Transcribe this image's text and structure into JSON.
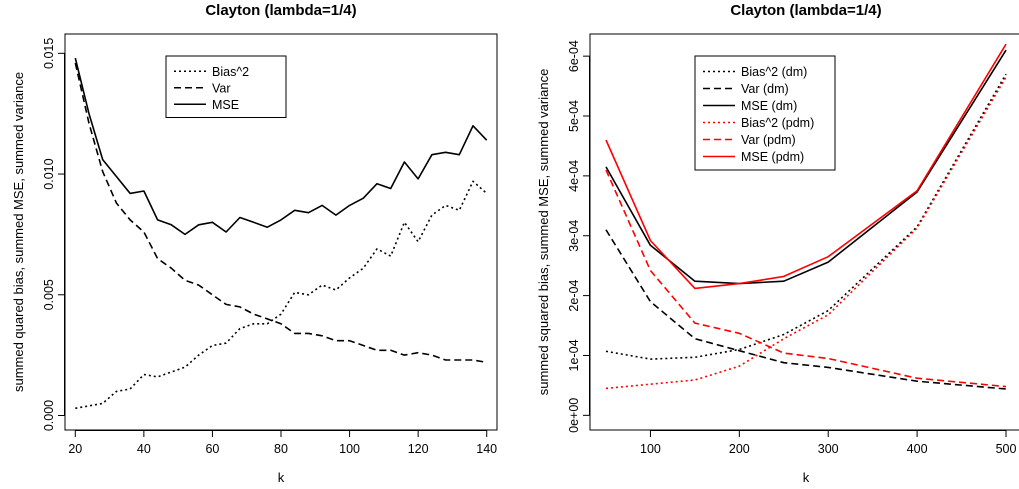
{
  "chart_data": [
    {
      "type": "line",
      "title": "Clayton (lambda=1/4)",
      "xlabel": "k",
      "ylabel": "summed quared bias, summed MSE, summed variance",
      "xlim": [
        17,
        143
      ],
      "ylim": [
        -0.0006,
        0.0158
      ],
      "xticks": [
        20,
        40,
        60,
        80,
        100,
        120,
        140
      ],
      "yticks": [
        "0.000",
        "0.005",
        "0.010",
        "0.015"
      ],
      "ytick_values": [
        0,
        0.005,
        0.01,
        0.015
      ],
      "legend_position": "top-center",
      "x": [
        20,
        24,
        28,
        32,
        36,
        40,
        44,
        48,
        52,
        56,
        60,
        64,
        68,
        72,
        76,
        80,
        84,
        88,
        92,
        96,
        100,
        104,
        108,
        112,
        116,
        120,
        124,
        128,
        132,
        136,
        140
      ],
      "series": [
        {
          "name": "Bias^2",
          "style": "dotted",
          "color": "#000000",
          "values": [
            0.0003,
            0.0004,
            0.0005,
            0.001,
            0.0011,
            0.0017,
            0.0016,
            0.0018,
            0.002,
            0.0025,
            0.0029,
            0.003,
            0.0036,
            0.0038,
            0.0038,
            0.0042,
            0.0051,
            0.005,
            0.0054,
            0.0052,
            0.0057,
            0.0061,
            0.0069,
            0.0066,
            0.008,
            0.0072,
            0.0083,
            0.0087,
            0.0085,
            0.0097,
            0.0092
          ]
        },
        {
          "name": "Var",
          "style": "dashed",
          "color": "#000000",
          "values": [
            0.0146,
            0.0121,
            0.0101,
            0.0088,
            0.0081,
            0.0076,
            0.0065,
            0.0061,
            0.0056,
            0.0054,
            0.005,
            0.0046,
            0.0045,
            0.0042,
            0.004,
            0.0038,
            0.0034,
            0.0034,
            0.0033,
            0.0031,
            0.0031,
            0.0029,
            0.0027,
            0.0027,
            0.0025,
            0.0026,
            0.0025,
            0.0023,
            0.0023,
            0.0023,
            0.0022
          ]
        },
        {
          "name": "MSE",
          "style": "solid",
          "color": "#000000",
          "values": [
            0.0148,
            0.0125,
            0.0106,
            0.0099,
            0.0092,
            0.0093,
            0.0081,
            0.0079,
            0.0075,
            0.0079,
            0.008,
            0.0076,
            0.0082,
            0.008,
            0.0078,
            0.0081,
            0.0085,
            0.0084,
            0.0087,
            0.0083,
            0.0087,
            0.009,
            0.0096,
            0.0094,
            0.0105,
            0.0098,
            0.0108,
            0.0109,
            0.0108,
            0.012,
            0.0114
          ]
        }
      ]
    },
    {
      "type": "line",
      "title": "Clayton (lambda=1/4)",
      "xlabel": "k",
      "ylabel": "summed squared bias, summed MSE, summed variance",
      "xlim": [
        32,
        518
      ],
      "ylim": [
        -2.45e-05,
        0.000637
      ],
      "xticks": [
        100,
        200,
        300,
        400,
        500
      ],
      "yticks": [
        "0e+00",
        "1e-04",
        "2e-04",
        "3e-04",
        "4e-04",
        "5e-04",
        "6e-04"
      ],
      "ytick_values": [
        0,
        0.0001,
        0.0002,
        0.0003,
        0.0004,
        0.0005,
        0.0006
      ],
      "legend_position": "top-left",
      "x": [
        50,
        100,
        150,
        200,
        250,
        300,
        400,
        500
      ],
      "series": [
        {
          "name": "Bias^2 (dm)",
          "style": "dotted",
          "color": "#000000",
          "values": [
            0.000107,
            9.4e-05,
            9.7e-05,
            0.00011,
            0.000135,
            0.000175,
            0.000315,
            0.00057
          ]
        },
        {
          "name": "Var (dm)",
          "style": "dashed",
          "color": "#000000",
          "values": [
            0.00031,
            0.00019,
            0.000128,
            0.000108,
            8.8e-05,
            8e-05,
            5.7e-05,
            4.4e-05
          ]
        },
        {
          "name": "MSE (dm)",
          "style": "solid",
          "color": "#000000",
          "values": [
            0.000415,
            0.000284,
            0.000224,
            0.00022,
            0.000224,
            0.000256,
            0.000373,
            0.00061
          ]
        },
        {
          "name": "Bias^2 (pdm)",
          "style": "dotted",
          "color": "#ff0000",
          "values": [
            4.5e-05,
            5.2e-05,
            5.9e-05,
            8.2e-05,
            0.000128,
            0.000168,
            0.000313,
            0.000565
          ]
        },
        {
          "name": "Var (pdm)",
          "style": "dashed",
          "color": "#ff0000",
          "values": [
            0.00041,
            0.000242,
            0.000154,
            0.000137,
            0.000104,
            9.5e-05,
            6.2e-05,
            4.8e-05
          ]
        },
        {
          "name": "MSE (pdm)",
          "style": "solid",
          "color": "#ff0000",
          "values": [
            0.00046,
            0.000292,
            0.000212,
            0.00022,
            0.000232,
            0.000265,
            0.000375,
            0.00062
          ]
        }
      ]
    }
  ]
}
